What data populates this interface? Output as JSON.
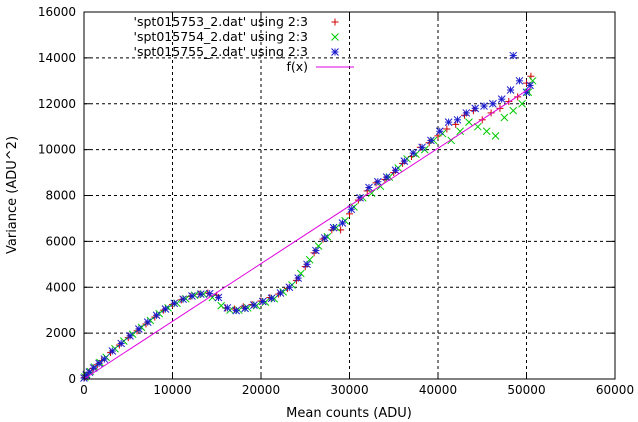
{
  "chart_data": {
    "type": "scatter",
    "title": "",
    "xlabel": "Mean counts (ADU)",
    "ylabel": "Variance (ADU^2)",
    "xlim": [
      0,
      60000
    ],
    "ylim": [
      0,
      16000
    ],
    "xticks": [
      0,
      10000,
      20000,
      30000,
      40000,
      50000,
      60000
    ],
    "yticks": [
      0,
      2000,
      4000,
      6000,
      8000,
      10000,
      12000,
      14000,
      16000
    ],
    "xtick_labels": [
      "0",
      "10000",
      "20000",
      "30000",
      "40000",
      "50000",
      "60000"
    ],
    "ytick_labels": [
      "0",
      "2000",
      "4000",
      "6000",
      "8000",
      "10000",
      "12000",
      "14000",
      "16000"
    ],
    "grid": true,
    "legend_position": "top-left",
    "series": [
      {
        "name": "'spt015753_2.dat' using 2:3",
        "marker": "plus",
        "color": "#cc0000",
        "x": [
          50,
          200,
          500,
          1000,
          1500,
          2000,
          3000,
          4000,
          5000,
          6000,
          7000,
          8000,
          9000,
          10000,
          11000,
          12000,
          13000,
          14000,
          15000,
          16000,
          17000,
          18000,
          19000,
          20000,
          21000,
          22000,
          23000,
          24000,
          25000,
          26000,
          27000,
          28000,
          29000,
          30000,
          31000,
          32000,
          33000,
          34000,
          35000,
          36000,
          37000,
          38000,
          39000,
          40000,
          41000,
          42000,
          43000,
          44000,
          45000,
          46000,
          47000,
          48000,
          49000,
          50000,
          50500
        ],
        "y": [
          60,
          150,
          280,
          450,
          620,
          800,
          1150,
          1480,
          1800,
          2100,
          2400,
          2700,
          3000,
          3250,
          3450,
          3600,
          3700,
          3750,
          3650,
          3100,
          3050,
          3150,
          3250,
          3400,
          3550,
          3700,
          3950,
          4300,
          4900,
          5500,
          6100,
          6500,
          6500,
          7200,
          7800,
          8200,
          8550,
          8700,
          9000,
          9400,
          9700,
          10100,
          10300,
          10600,
          10900,
          11100,
          11500,
          11700,
          11300,
          11600,
          11800,
          12100,
          12300,
          12900,
          13200
        ]
      },
      {
        "name": "'spt015754_2.dat' using 2:3",
        "marker": "cross",
        "color": "#00cc00",
        "x": [
          100,
          300,
          700,
          1200,
          1800,
          2500,
          3500,
          4500,
          5500,
          6500,
          7500,
          8500,
          9500,
          10500,
          11500,
          12500,
          13500,
          14500,
          15500,
          16500,
          17500,
          18500,
          19500,
          20500,
          21500,
          22500,
          23500,
          24500,
          25500,
          26500,
          27500,
          28500,
          29500,
          30500,
          31500,
          32500,
          33500,
          34500,
          35500,
          36500,
          37500,
          38500,
          39500,
          40500,
          41500,
          42500,
          43500,
          44500,
          45500,
          46500,
          47500,
          48500,
          49500,
          50200,
          50700
        ],
        "y": [
          90,
          200,
          330,
          520,
          720,
          950,
          1320,
          1650,
          1950,
          2250,
          2550,
          2850,
          3100,
          3300,
          3500,
          3650,
          3700,
          3550,
          3200,
          3000,
          3000,
          3100,
          3200,
          3350,
          3500,
          3800,
          4100,
          4600,
          5200,
          5800,
          6200,
          6600,
          6900,
          7500,
          7900,
          8100,
          8400,
          8800,
          9200,
          9600,
          9800,
          10000,
          10400,
          10700,
          10400,
          10800,
          11200,
          11000,
          10800,
          10600,
          11400,
          11700,
          12000,
          12500,
          13000
        ]
      },
      {
        "name": "'spt015755_2.dat' using 2:3",
        "marker": "star",
        "color": "#1a1acc",
        "x": [
          0,
          250,
          600,
          1100,
          1700,
          2300,
          3200,
          4200,
          5200,
          6200,
          7200,
          8200,
          9200,
          10200,
          11200,
          12200,
          13200,
          14200,
          15200,
          16200,
          17200,
          18200,
          19200,
          20200,
          21200,
          22200,
          23200,
          24200,
          25200,
          26200,
          27200,
          28200,
          29200,
          30200,
          31200,
          32200,
          33200,
          34200,
          35200,
          36200,
          37200,
          38200,
          39200,
          40200,
          41200,
          42200,
          43200,
          44200,
          45200,
          46200,
          47200,
          48200,
          48500,
          49200,
          50000,
          50400
        ],
        "y": [
          40,
          170,
          300,
          480,
          680,
          870,
          1220,
          1550,
          1880,
          2180,
          2480,
          2780,
          3050,
          3300,
          3480,
          3620,
          3700,
          3720,
          3550,
          3100,
          2980,
          3080,
          3220,
          3380,
          3520,
          3750,
          4000,
          4400,
          5000,
          5600,
          6150,
          6600,
          6800,
          7400,
          7900,
          8350,
          8600,
          8800,
          9100,
          9500,
          9850,
          10100,
          10400,
          10800,
          11200,
          11300,
          11600,
          11800,
          11900,
          12000,
          12200,
          12600,
          14100,
          13000,
          12500,
          12800
        ]
      },
      {
        "name": "f(x)",
        "type": "line",
        "color": "#e000e0",
        "x": [
          0,
          50500
        ],
        "y": [
          0,
          12700
        ]
      }
    ]
  }
}
